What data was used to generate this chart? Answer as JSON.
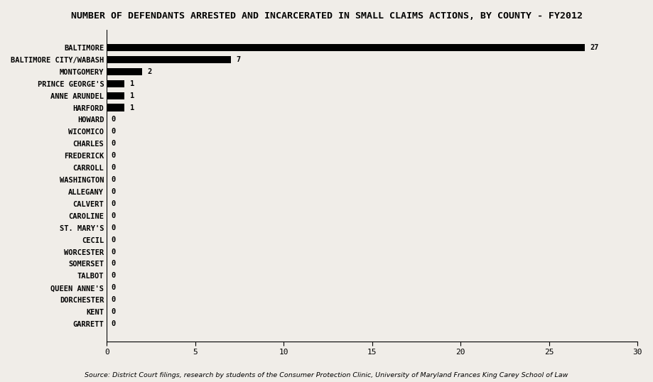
{
  "title": "NUMBER OF DEFENDANTS ARRESTED AND INCARCERATED IN SMALL CLAIMS ACTIONS, BY COUNTY - FY2012",
  "categories": [
    "BALTIMORE",
    "BALTIMORE CITY/WABASH",
    "MONTGOMERY",
    "PRINCE GEORGE'S",
    "ANNE ARUNDEL",
    "HARFORD",
    "HOWARD",
    "WICOMICO",
    "CHARLES",
    "FREDERICK",
    "CARROLL",
    "WASHINGTON",
    "ALLEGANY",
    "CALVERT",
    "CAROLINE",
    "ST. MARY'S",
    "CECIL",
    "WORCESTER",
    "SOMERSET",
    "TALBOT",
    "QUEEN ANNE'S",
    "DORCHESTER",
    "KENT",
    "GARRETT"
  ],
  "values": [
    27,
    7,
    2,
    1,
    1,
    1,
    0,
    0,
    0,
    0,
    0,
    0,
    0,
    0,
    0,
    0,
    0,
    0,
    0,
    0,
    0,
    0,
    0,
    0
  ],
  "bar_color": "#000000",
  "background_color": "#f0ede8",
  "xlim": [
    0,
    30
  ],
  "xticks": [
    0,
    5,
    10,
    15,
    20,
    25,
    30
  ],
  "source": "Source: District Court filings, research by students of the Consumer Protection Clinic, University of Maryland Frances King Carey School of Law",
  "title_fontsize": 9.5,
  "label_fontsize": 7.5,
  "tick_fontsize": 8,
  "source_fontsize": 6.8
}
